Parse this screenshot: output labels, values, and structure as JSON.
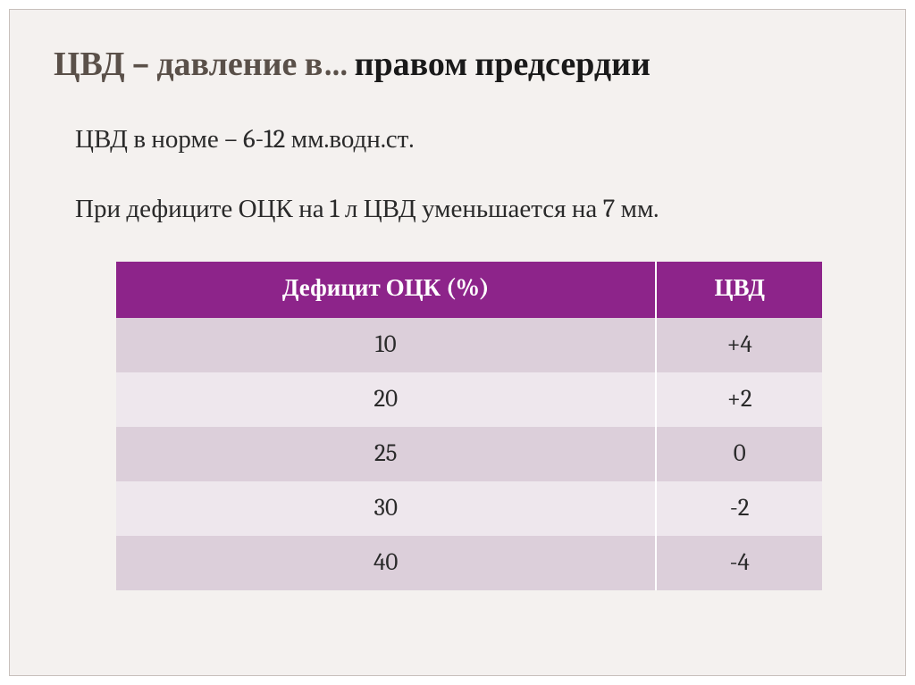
{
  "slide": {
    "title_prefix": "ЦВД – давление в…",
    "title_answer": "правом предсердии",
    "line1": "ЦВД в норме – 6-12 мм.водн.ст.",
    "line2": "При дефиците ОЦК на 1 л ЦВД уменьшается на 7 мм.",
    "table": {
      "columns": [
        "Дефицит ОЦК (%)",
        "ЦВД"
      ],
      "rows": [
        [
          "10",
          "+4"
        ],
        [
          "20",
          "+2"
        ],
        [
          "25",
          "0"
        ],
        [
          "30",
          "-2"
        ],
        [
          "40",
          "-4"
        ]
      ],
      "header_bg": "#8d248a",
      "header_color": "#ffffff",
      "row_alt_a_bg": "#dccfda",
      "row_alt_b_bg": "#eee7ed",
      "cell_font_size_pt": 20,
      "header_font_size_pt": 20,
      "col_widths_pct": [
        50,
        50
      ]
    },
    "background_color": "#f4f1ef",
    "title_color": "#5a5049",
    "answer_color": "#1a1a1a",
    "body_color": "#2a2a2a",
    "title_fontsize": 38,
    "body_fontsize": 29
  }
}
